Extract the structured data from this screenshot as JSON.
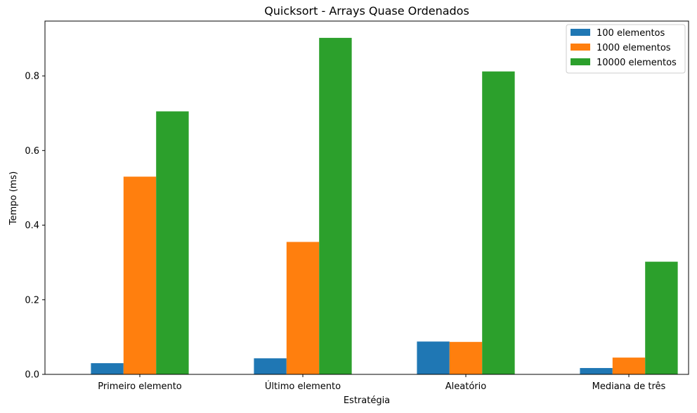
{
  "chart_data": {
    "type": "bar",
    "title": "Quicksort - Arrays Quase Ordenados",
    "xlabel": "Estratégia",
    "ylabel": "Tempo (ms)",
    "categories": [
      "Primeiro elemento",
      "Último elemento",
      "Aleatório",
      "Mediana de três"
    ],
    "series": [
      {
        "name": "100 elementos",
        "color": "#1f77b4",
        "values": [
          0.03,
          0.043,
          0.088,
          0.017
        ]
      },
      {
        "name": "1000 elementos",
        "color": "#ff7f0e",
        "values": [
          0.53,
          0.355,
          0.087,
          0.045
        ]
      },
      {
        "name": "10000 elementos",
        "color": "#2ca02c",
        "values": [
          0.705,
          0.902,
          0.812,
          0.302
        ]
      }
    ],
    "ylim": [
      0,
      0.947
    ],
    "yticks": [
      "0.0",
      "0.2",
      "0.4",
      "0.6",
      "0.8"
    ],
    "grid": false,
    "legend_position": "top-right"
  }
}
